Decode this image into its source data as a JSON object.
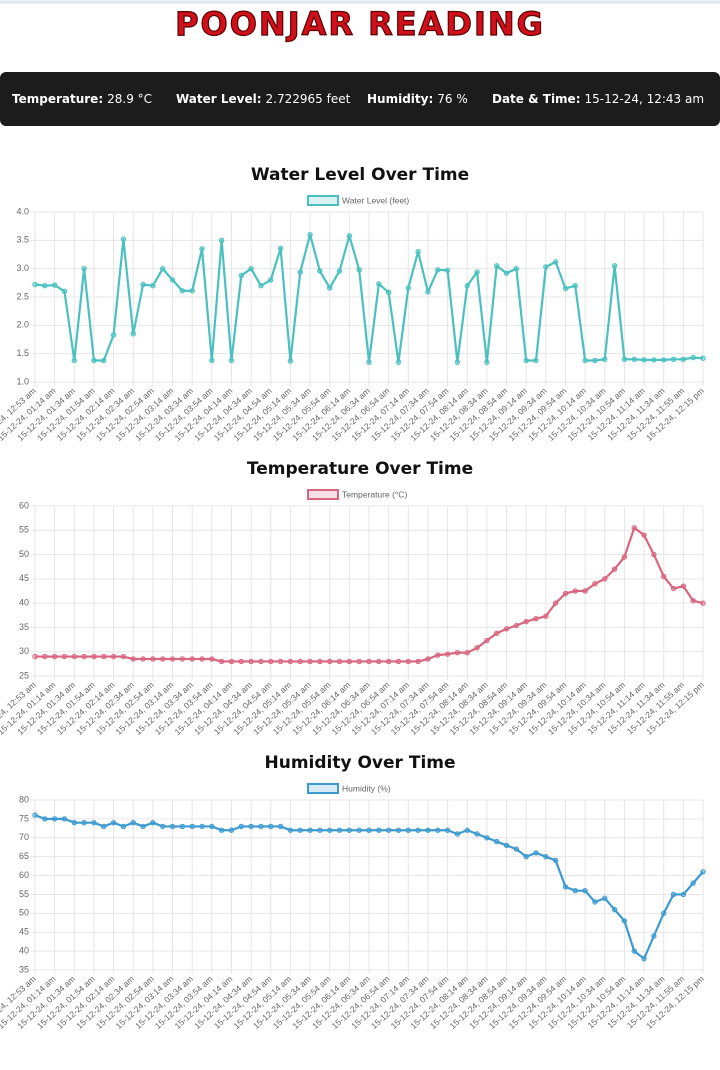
{
  "header": {
    "title": "POONJAR READING"
  },
  "stats": [
    {
      "label": "Temperature:",
      "value": "28.9 °C"
    },
    {
      "label": "Water Level:",
      "value": "2.722965 feet"
    },
    {
      "label": "Humidity:",
      "value": "76 %"
    },
    {
      "label": "Date & Time:",
      "value": "15-12-24, 12:43 am"
    }
  ],
  "chart_data": [
    {
      "type": "line",
      "title": "Water Level Over Time",
      "categories": [
        "15-12-24, 12:53 am",
        null,
        "15-12-24, 01:14 am",
        null,
        "15-12-24, 01:34 am",
        null,
        "15-12-24, 01:54 am",
        null,
        "15-12-24, 02:14 am",
        null,
        "15-12-24, 02:34 am",
        null,
        "15-12-24, 02:54 am",
        null,
        "15-12-24, 03:14 am",
        null,
        "15-12-24, 03:34 am",
        null,
        "15-12-24, 03:54 am",
        null,
        "15-12-24, 04:14 am",
        null,
        "15-12-24, 04:34 am",
        null,
        "15-12-24, 04:54 am",
        null,
        "15-12-24, 05:14 am",
        null,
        "15-12-24, 05:34 am",
        null,
        "15-12-24, 05:54 am",
        null,
        "15-12-24, 06:14 am",
        null,
        "15-12-24, 06:34 am",
        null,
        "15-12-24, 06:54 am",
        null,
        "15-12-24, 07:14 am",
        null,
        "15-12-24, 07:34 am",
        null,
        "15-12-24, 07:54 am",
        null,
        "15-12-24, 08:14 am",
        null,
        "15-12-24, 08:34 am",
        null,
        "15-12-24, 08:54 am",
        null,
        "15-12-24, 09:14 am",
        null,
        "15-12-24, 09:34 am",
        null,
        "15-12-24, 09:54 am",
        null,
        "15-12-24, 10:14 am",
        null,
        "15-12-24, 10:34 am",
        null,
        "15-12-24, 10:54 am",
        null,
        "15-12-24, 11:14 am",
        null,
        "15-12-24, 11:34 am",
        null,
        "15-12-24, 11:55 am",
        null,
        "15-12-24, 12:15 pm"
      ],
      "series": [
        {
          "name": "Water Level (feet)",
          "color": "#4bc0c0",
          "values": [
            2.72,
            2.7,
            2.71,
            2.6,
            1.38,
            3.0,
            1.38,
            1.38,
            1.83,
            3.52,
            1.85,
            2.72,
            2.7,
            3.0,
            2.8,
            2.61,
            2.61,
            3.35,
            1.38,
            3.5,
            1.38,
            2.88,
            3.0,
            2.7,
            2.8,
            3.36,
            1.37,
            2.94,
            3.6,
            2.96,
            2.66,
            2.96,
            3.58,
            2.98,
            1.35,
            2.73,
            2.58,
            1.35,
            2.66,
            3.3,
            2.59,
            2.98,
            2.97,
            1.35,
            2.7,
            2.94,
            1.35,
            3.05,
            2.92,
            3.0,
            1.38,
            1.38,
            3.03,
            3.12,
            2.65,
            2.7,
            1.38,
            1.38,
            1.4,
            3.05,
            1.4,
            1.4,
            1.39,
            1.39,
            1.39,
            1.4,
            1.4,
            1.43,
            1.42
          ]
        }
      ],
      "ylim": [
        1,
        4
      ],
      "yticks": [
        {
          "value": 1,
          "label": "1.0"
        },
        1.5,
        {
          "value": 2,
          "label": "2.0"
        },
        2.5,
        {
          "value": 3,
          "label": "3.0"
        },
        3.5,
        {
          "value": 4,
          "label": "4.0"
        }
      ],
      "grid": true
    },
    {
      "type": "line",
      "title": "Temperature Over Time",
      "categories": [
        "15-12-24, 12:53 am",
        null,
        "15-12-24, 01:14 am",
        null,
        "15-12-24, 01:34 am",
        null,
        "15-12-24, 01:54 am",
        null,
        "15-12-24, 02:14 am",
        null,
        "15-12-24, 02:34 am",
        null,
        "15-12-24, 02:54 am",
        null,
        "15-12-24, 03:14 am",
        null,
        "15-12-24, 03:34 am",
        null,
        "15-12-24, 03:54 am",
        null,
        "15-12-24, 04:14 am",
        null,
        "15-12-24, 04:34 am",
        null,
        "15-12-24, 04:54 am",
        null,
        "15-12-24, 05:14 am",
        null,
        "15-12-24, 05:34 am",
        null,
        "15-12-24, 05:54 am",
        null,
        "15-12-24, 06:14 am",
        null,
        "15-12-24, 06:34 am",
        null,
        "15-12-24, 06:54 am",
        null,
        "15-12-24, 07:14 am",
        null,
        "15-12-24, 07:34 am",
        null,
        "15-12-24, 07:54 am",
        null,
        "15-12-24, 08:14 am",
        null,
        "15-12-24, 08:34 am",
        null,
        "15-12-24, 08:54 am",
        null,
        "15-12-24, 09:14 am",
        null,
        "15-12-24, 09:34 am",
        null,
        "15-12-24, 09:54 am",
        null,
        "15-12-24, 10:14 am",
        null,
        "15-12-24, 10:34 am",
        null,
        "15-12-24, 10:54 am",
        null,
        "15-12-24, 11:14 am",
        null,
        "15-12-24, 11:34 am",
        null,
        "15-12-24, 11:55 am",
        null,
        "15-12-24, 12:15 pm"
      ],
      "series": [
        {
          "name": "Temperature (°C)",
          "color": "#d9657f",
          "values": [
            29,
            29,
            29,
            29,
            29,
            29,
            29,
            29,
            29,
            29,
            28.5,
            28.5,
            28.5,
            28.5,
            28.5,
            28.5,
            28.5,
            28.5,
            28.5,
            28,
            28,
            28,
            28,
            28,
            28,
            28,
            28,
            28,
            28,
            28,
            28,
            28,
            28,
            28,
            28,
            28,
            28,
            28,
            28,
            28,
            28.5,
            29.3,
            29.5,
            29.8,
            29.8,
            30.8,
            32.3,
            33.8,
            34.7,
            35.4,
            36.2,
            36.8,
            37.3,
            40,
            42,
            42.5,
            42.5,
            44,
            45,
            47,
            49.5,
            55.5,
            54,
            50,
            45.5,
            43,
            43.5,
            40.5,
            40
          ]
        }
      ],
      "ylim": [
        25,
        60
      ],
      "yticks": [
        25,
        30,
        35,
        40,
        45,
        50,
        55,
        60
      ],
      "grid": true
    },
    {
      "type": "line",
      "title": "Humidity Over Time",
      "categories": [
        "15-12-24, 12:53 am",
        null,
        "15-12-24, 01:14 am",
        null,
        "15-12-24, 01:34 am",
        null,
        "15-12-24, 01:54 am",
        null,
        "15-12-24, 02:14 am",
        null,
        "15-12-24, 02:34 am",
        null,
        "15-12-24, 02:54 am",
        null,
        "15-12-24, 03:14 am",
        null,
        "15-12-24, 03:34 am",
        null,
        "15-12-24, 03:54 am",
        null,
        "15-12-24, 04:14 am",
        null,
        "15-12-24, 04:34 am",
        null,
        "15-12-24, 04:54 am",
        null,
        "15-12-24, 05:14 am",
        null,
        "15-12-24, 05:34 am",
        null,
        "15-12-24, 05:54 am",
        null,
        "15-12-24, 06:14 am",
        null,
        "15-12-24, 06:34 am",
        null,
        "15-12-24, 06:54 am",
        null,
        "15-12-24, 07:14 am",
        null,
        "15-12-24, 07:34 am",
        null,
        "15-12-24, 07:54 am",
        null,
        "15-12-24, 08:14 am",
        null,
        "15-12-24, 08:34 am",
        null,
        "15-12-24, 08:54 am",
        null,
        "15-12-24, 09:14 am",
        null,
        "15-12-24, 09:34 am",
        null,
        "15-12-24, 09:54 am",
        null,
        "15-12-24, 10:14 am",
        null,
        "15-12-24, 10:34 am",
        null,
        "15-12-24, 10:54 am",
        null,
        "15-12-24, 11:14 am",
        null,
        "15-12-24, 11:34 am",
        null,
        "15-12-24, 11:55 am",
        null,
        "15-12-24, 12:15 pm"
      ],
      "series": [
        {
          "name": "Humidity (%)",
          "color": "#3d9ad0",
          "values": [
            76,
            75,
            75,
            75,
            74,
            74,
            74,
            73,
            74,
            73,
            74,
            73,
            74,
            73,
            73,
            73,
            73,
            73,
            73,
            72,
            72,
            73,
            73,
            73,
            73,
            73,
            72,
            72,
            72,
            72,
            72,
            72,
            72,
            72,
            72,
            72,
            72,
            72,
            72,
            72,
            72,
            72,
            72,
            71,
            72,
            71,
            70,
            69,
            68,
            67,
            65,
            66,
            65,
            64,
            57,
            56,
            56,
            53,
            54,
            51,
            48,
            40,
            38,
            44,
            50,
            55,
            55,
            58,
            61
          ]
        }
      ],
      "ylim": [
        35,
        80
      ],
      "yticks": [
        35,
        40,
        45,
        50,
        55,
        60,
        65,
        70,
        75,
        80
      ],
      "grid": true
    }
  ]
}
